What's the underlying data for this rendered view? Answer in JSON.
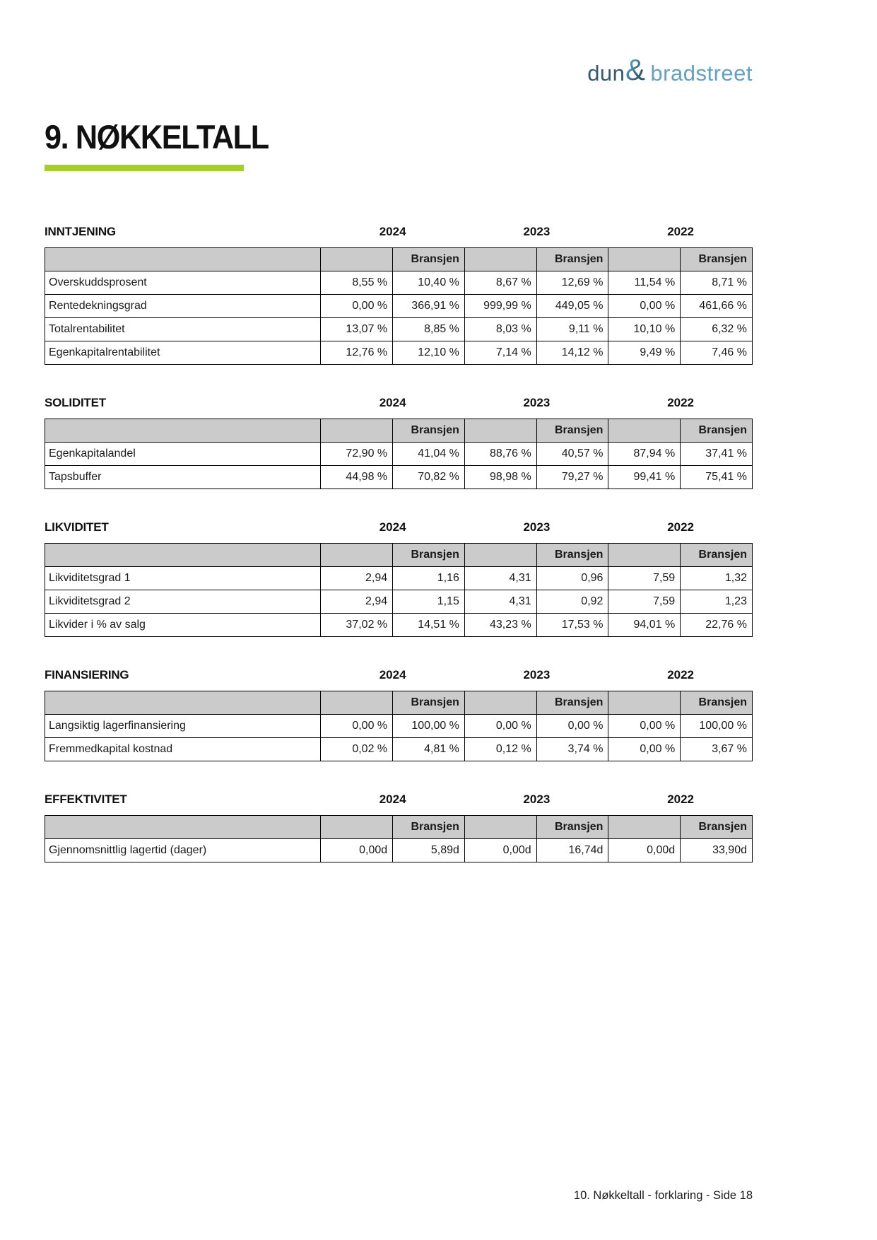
{
  "logo": {
    "dun": "dun",
    "amp": "&",
    "bradstreet": "bradstreet"
  },
  "page_title": "9. NØKKELTALL",
  "years": [
    "2024",
    "2023",
    "2022"
  ],
  "bransjen_label": "Bransjen",
  "sections": [
    {
      "title": "INNTJENING",
      "rows": [
        {
          "label": "Overskuddsprosent",
          "values": [
            "8,55 %",
            "10,40 %",
            "8,67 %",
            "12,69 %",
            "11,54 %",
            "8,71 %"
          ]
        },
        {
          "label": "Rentedekningsgrad",
          "values": [
            "0,00 %",
            "366,91 %",
            "999,99 %",
            "449,05 %",
            "0,00 %",
            "461,66 %"
          ]
        },
        {
          "label": "Totalrentabilitet",
          "values": [
            "13,07 %",
            "8,85 %",
            "8,03 %",
            "9,11 %",
            "10,10 %",
            "6,32 %"
          ]
        },
        {
          "label": "Egenkapitalrentabilitet",
          "values": [
            "12,76 %",
            "12,10 %",
            "7,14 %",
            "14,12 %",
            "9,49 %",
            "7,46 %"
          ]
        }
      ]
    },
    {
      "title": "SOLIDITET",
      "rows": [
        {
          "label": "Egenkapitalandel",
          "values": [
            "72,90 %",
            "41,04 %",
            "88,76 %",
            "40,57 %",
            "87,94 %",
            "37,41 %"
          ]
        },
        {
          "label": "Tapsbuffer",
          "values": [
            "44,98 %",
            "70,82 %",
            "98,98 %",
            "79,27 %",
            "99,41 %",
            "75,41 %"
          ]
        }
      ]
    },
    {
      "title": "LIKVIDITET",
      "rows": [
        {
          "label": "Likviditetsgrad 1",
          "values": [
            "2,94",
            "1,16",
            "4,31",
            "0,96",
            "7,59",
            "1,32"
          ]
        },
        {
          "label": "Likviditetsgrad 2",
          "values": [
            "2,94",
            "1,15",
            "4,31",
            "0,92",
            "7,59",
            "1,23"
          ]
        },
        {
          "label": "Likvider i % av salg",
          "values": [
            "37,02 %",
            "14,51 %",
            "43,23 %",
            "17,53 %",
            "94,01 %",
            "22,76 %"
          ]
        }
      ]
    },
    {
      "title": "FINANSIERING",
      "rows": [
        {
          "label": "Langsiktig lagerfinansiering",
          "values": [
            "0,00 %",
            "100,00 %",
            "0,00 %",
            "0,00 %",
            "0,00 %",
            "100,00 %"
          ]
        },
        {
          "label": "Fremmedkapital kostnad",
          "values": [
            "0,02 %",
            "4,81 %",
            "0,12 %",
            "3,74 %",
            "0,00 %",
            "3,67 %"
          ]
        }
      ]
    },
    {
      "title": "EFFEKTIVITET",
      "rows": [
        {
          "label": "Gjennomsnittlig lagertid (dager)",
          "values": [
            "0,00d",
            "5,89d",
            "0,00d",
            "16,74d",
            "0,00d",
            "33,90d"
          ]
        }
      ]
    }
  ],
  "footer_text": "10. Nøkkeltall - forklaring - Side 18",
  "colors": {
    "accent_green": "#a5ce27",
    "header_gray": "#cbcbcb",
    "logo_dark": "#35596e",
    "logo_light": "#64a0c3",
    "logo_teal": "#4a90aa"
  }
}
